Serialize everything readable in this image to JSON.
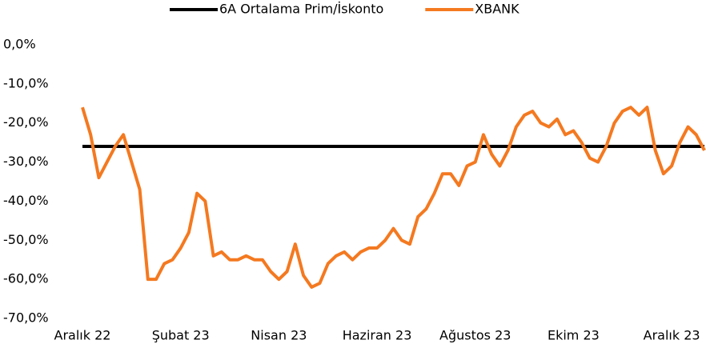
{
  "chart_data": {
    "type": "line",
    "categories": [
      "Aralık 22",
      null,
      null,
      null,
      null,
      null,
      null,
      null,
      null,
      null,
      null,
      null,
      "Şubat 23",
      null,
      null,
      null,
      null,
      null,
      null,
      null,
      null,
      null,
      null,
      null,
      "Nisan 23",
      null,
      null,
      null,
      null,
      null,
      null,
      null,
      null,
      null,
      null,
      null,
      "Haziran 23",
      null,
      null,
      null,
      null,
      null,
      null,
      null,
      null,
      null,
      null,
      null,
      "Ağustos 23",
      null,
      null,
      null,
      null,
      null,
      null,
      null,
      null,
      null,
      null,
      null,
      "Ekim 23",
      null,
      null,
      null,
      null,
      null,
      null,
      null,
      null,
      null,
      null,
      null,
      "Aralık 23",
      null,
      null,
      null,
      null
    ],
    "series": [
      {
        "name": "6A Ortalama Prim/İskonto",
        "color": "#000000",
        "values": [
          -26,
          -26,
          -26,
          -26,
          -26,
          -26,
          -26,
          -26,
          -26,
          -26,
          -26,
          -26,
          -26,
          -26,
          -26,
          -26,
          -26,
          -26,
          -26,
          -26,
          -26,
          -26,
          -26,
          -26,
          -26,
          -26,
          -26,
          -26,
          -26,
          -26,
          -26,
          -26,
          -26,
          -26,
          -26,
          -26,
          -26,
          -26,
          -26,
          -26,
          -26,
          -26,
          -26,
          -26,
          -26,
          -26,
          -26,
          -26,
          -26,
          -26,
          -26,
          -26,
          -26,
          -26,
          -26,
          -26,
          -26,
          -26,
          -26,
          -26,
          -26,
          -26,
          -26,
          -26,
          -26,
          -26,
          -26,
          -26,
          -26,
          -26,
          -26,
          -26,
          -26,
          -26,
          -26,
          -26,
          -26
        ]
      },
      {
        "name": "XBANK",
        "color": "#f47920",
        "values": [
          -16,
          -23,
          -34,
          -30,
          -26,
          -23,
          -30,
          -37,
          -60,
          -60,
          -56,
          -55,
          -52,
          -48,
          -38,
          -40,
          -54,
          -53,
          -55,
          -55,
          -54,
          -55,
          -55,
          -58,
          -60,
          -58,
          -51,
          -59,
          -62,
          -61,
          -56,
          -54,
          -53,
          -55,
          -53,
          -52,
          -52,
          -50,
          -47,
          -50,
          -51,
          -44,
          -42,
          -38,
          -33,
          -33,
          -36,
          -31,
          -30,
          -23,
          -28,
          -31,
          -27,
          -21,
          -18,
          -17,
          -20,
          -21,
          -19,
          -23,
          -22,
          -25,
          -29,
          -30,
          -26,
          -20,
          -17,
          -16,
          -18,
          -16,
          -27,
          -33,
          -31,
          -25,
          -21,
          -23,
          -27
        ]
      }
    ],
    "ylim": [
      -70,
      0
    ],
    "yticks": [
      {
        "value": -70,
        "label": "-70,0%"
      },
      {
        "value": -60,
        "label": "-60,0%"
      },
      {
        "value": -50,
        "label": "-50,0%"
      },
      {
        "value": -40,
        "label": "-40,0%"
      },
      {
        "value": -30,
        "label": "-30,0%"
      },
      {
        "value": -20,
        "label": "-20,0%"
      },
      {
        "value": -10,
        "label": "-10,0%"
      },
      {
        "value": 0,
        "label": "0,0%"
      }
    ],
    "legend": "top"
  }
}
